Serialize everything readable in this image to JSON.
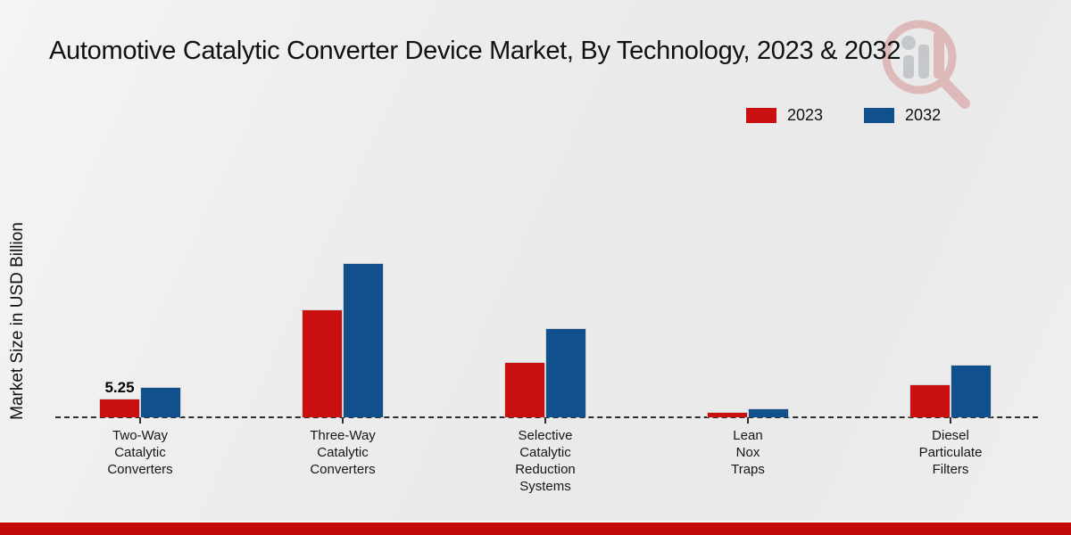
{
  "chart_data": {
    "type": "bar",
    "title": "Automotive Catalytic Converter Device Market, By Technology, 2023 & 2032",
    "ylabel": "Market Size in USD Billion",
    "xlabel": "",
    "categories": [
      {
        "name": "Two-Way Catalytic Converters",
        "lines": [
          "Two-Way",
          "Catalytic",
          "Converters"
        ]
      },
      {
        "name": "Three-Way Catalytic Converters",
        "lines": [
          "Three-Way",
          "Catalytic",
          "Converters"
        ]
      },
      {
        "name": "Selective Catalytic Reduction Systems",
        "lines": [
          "Selective",
          "Catalytic",
          "Reduction",
          "Systems"
        ]
      },
      {
        "name": "Lean Nox Traps",
        "lines": [
          "Lean",
          "Nox",
          "Traps"
        ]
      },
      {
        "name": "Diesel Particulate Filters",
        "lines": [
          "Diesel",
          "Particulate",
          "Filters"
        ]
      }
    ],
    "series": [
      {
        "name": "2023",
        "color": "#c90f0f",
        "values": [
          5.25,
          30.25,
          15.5,
          1.5,
          9.25
        ]
      },
      {
        "name": "2032",
        "color": "#10508c",
        "values": [
          8.5,
          43.25,
          25.0,
          2.5,
          14.75
        ]
      }
    ],
    "value_labels": [
      {
        "series": "2023",
        "category_index": 0,
        "text": "5.25"
      }
    ],
    "legend_position": "top-right",
    "grid": false,
    "y_axis_ticks_visible": false,
    "baseline_style": "dashed"
  },
  "colors": {
    "series_2023": "#c90f0f",
    "series_2032": "#10508c",
    "baseline": "#2e2e2e",
    "bottom_strip": "#c30808",
    "background": "#ebebeb",
    "title_text": "#111111",
    "watermark_red": "#cf8080",
    "watermark_gray": "#9aa0a6"
  }
}
